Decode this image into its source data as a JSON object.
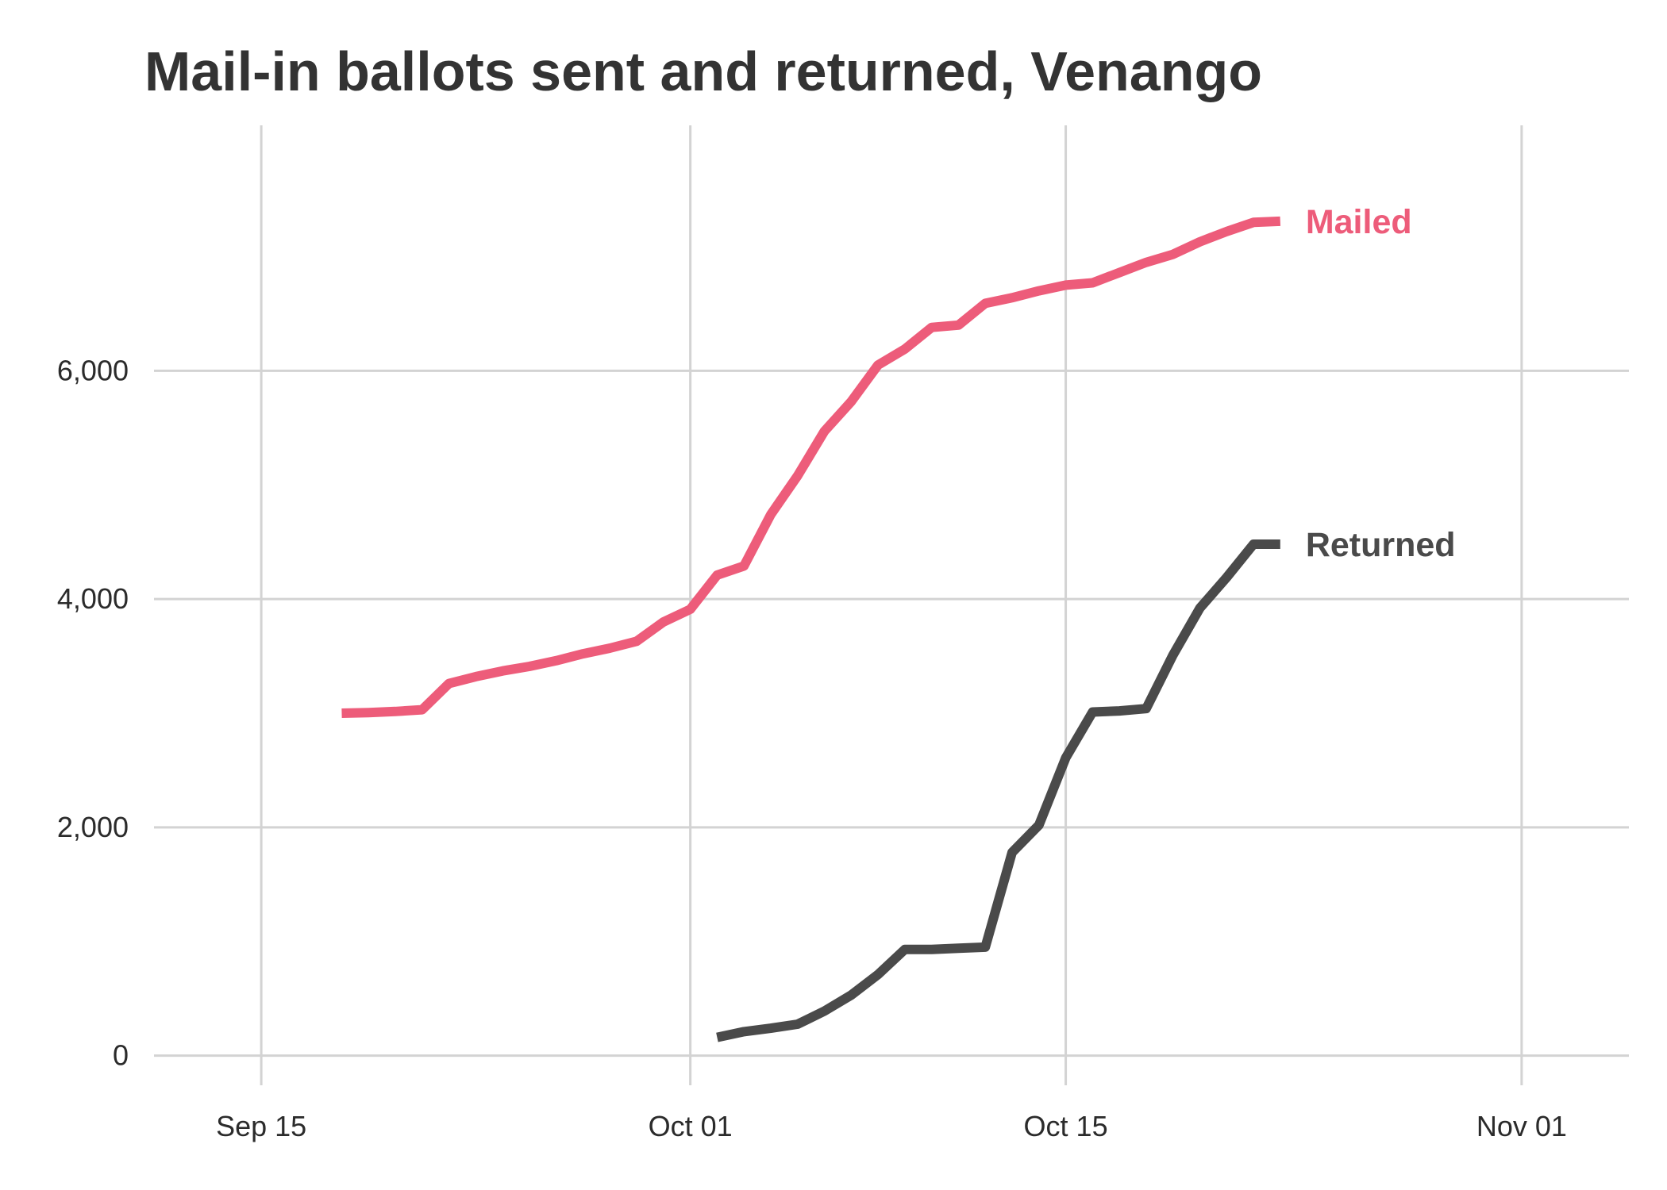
{
  "chart_data": {
    "type": "line",
    "title": "Mail-in ballots sent and returned, Venango",
    "xlabel": "",
    "ylabel": "",
    "x_range": [
      "2020-09-11",
      "2020-11-05"
    ],
    "ylim": [
      -260,
      8150
    ],
    "y_ticks": [
      0,
      2000,
      4000,
      6000
    ],
    "y_tick_labels": [
      "0",
      "2,000",
      "4,000",
      "6,000"
    ],
    "x_ticks": [
      "2020-09-15",
      "2020-10-01",
      "2020-10-15",
      "2020-11-01"
    ],
    "x_tick_labels": [
      "Sep 15",
      "Oct 01",
      "Oct 15",
      "Nov 01"
    ],
    "grid": true,
    "legend": "direct-labels-right",
    "series": [
      {
        "name": "Mailed",
        "color": "#ed5c7a",
        "points": [
          [
            "2020-09-18",
            3000
          ],
          [
            "2020-09-19",
            3005
          ],
          [
            "2020-09-20",
            3015
          ],
          [
            "2020-09-21",
            3030
          ],
          [
            "2020-09-22",
            3260
          ],
          [
            "2020-09-23",
            3320
          ],
          [
            "2020-09-24",
            3370
          ],
          [
            "2020-09-25",
            3410
          ],
          [
            "2020-09-26",
            3460
          ],
          [
            "2020-09-27",
            3520
          ],
          [
            "2020-09-28",
            3570
          ],
          [
            "2020-09-29",
            3630
          ],
          [
            "2020-09-30",
            3800
          ],
          [
            "2020-10-01",
            3910
          ],
          [
            "2020-10-02",
            4210
          ],
          [
            "2020-10-03",
            4290
          ],
          [
            "2020-10-04",
            4740
          ],
          [
            "2020-10-05",
            5080
          ],
          [
            "2020-10-06",
            5470
          ],
          [
            "2020-10-07",
            5730
          ],
          [
            "2020-10-08",
            6050
          ],
          [
            "2020-10-09",
            6190
          ],
          [
            "2020-10-10",
            6380
          ],
          [
            "2020-10-11",
            6400
          ],
          [
            "2020-10-12",
            6590
          ],
          [
            "2020-10-13",
            6640
          ],
          [
            "2020-10-14",
            6700
          ],
          [
            "2020-10-15",
            6750
          ],
          [
            "2020-10-16",
            6770
          ],
          [
            "2020-10-17",
            6860
          ],
          [
            "2020-10-18",
            6950
          ],
          [
            "2020-10-19",
            7020
          ],
          [
            "2020-10-20",
            7130
          ],
          [
            "2020-10-21",
            7220
          ],
          [
            "2020-10-22",
            7300
          ],
          [
            "2020-10-23",
            7310
          ]
        ]
      },
      {
        "name": "Returned",
        "color": "#4a4a4a",
        "points": [
          [
            "2020-10-02",
            160
          ],
          [
            "2020-10-03",
            210
          ],
          [
            "2020-10-04",
            240
          ],
          [
            "2020-10-05",
            275
          ],
          [
            "2020-10-06",
            390
          ],
          [
            "2020-10-07",
            530
          ],
          [
            "2020-10-08",
            710
          ],
          [
            "2020-10-09",
            930
          ],
          [
            "2020-10-10",
            930
          ],
          [
            "2020-10-11",
            940
          ],
          [
            "2020-10-12",
            950
          ],
          [
            "2020-10-13",
            1780
          ],
          [
            "2020-10-14",
            2020
          ],
          [
            "2020-10-15",
            2610
          ],
          [
            "2020-10-16",
            3010
          ],
          [
            "2020-10-17",
            3020
          ],
          [
            "2020-10-18",
            3040
          ],
          [
            "2020-10-19",
            3510
          ],
          [
            "2020-10-20",
            3920
          ],
          [
            "2020-10-21",
            4190
          ],
          [
            "2020-10-22",
            4480
          ],
          [
            "2020-10-23",
            4480
          ]
        ]
      }
    ]
  }
}
